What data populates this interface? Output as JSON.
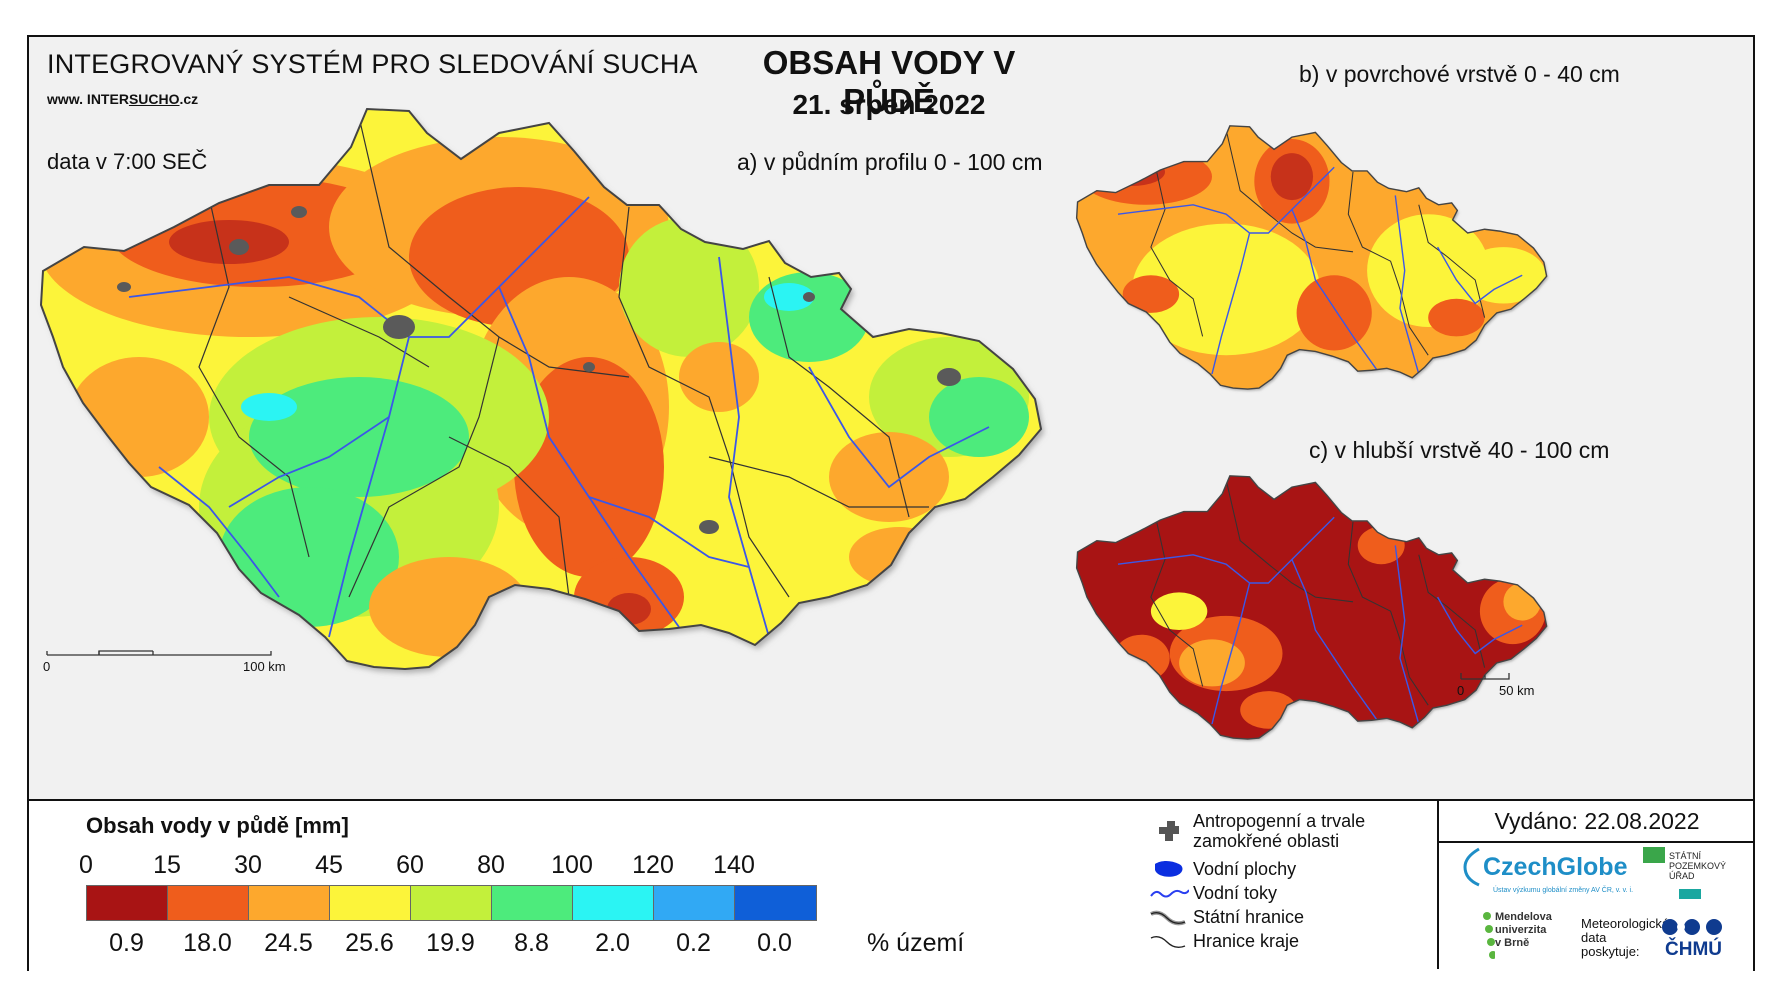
{
  "header": {
    "system_title": "INTEGROVANÝ SYSTÉM PRO SLEDOVÁNÍ SUCHA",
    "site_prefix": "www. INTER",
    "site_mid": "SUCHO",
    "site_suffix": ".cz",
    "time_note": "data v 7:00 SEČ",
    "main_title": "OBSAH VODY V PŮDĚ",
    "main_date": "21. srpen 2022"
  },
  "maps": {
    "a_title": "a) v půdním profilu 0 - 100 cm",
    "b_title": "b) v povrchové vrstvě 0 - 40 cm",
    "c_title": "c) v hlubší vrstvě 40 - 100 cm",
    "scale_main": {
      "start": "0",
      "end": "100 km"
    },
    "scale_small": {
      "start": "0",
      "end": "50 km"
    }
  },
  "legend": {
    "title": "Obsah vody v půdě  [mm]",
    "ticks": [
      "0",
      "15",
      "30",
      "45",
      "60",
      "80",
      "100",
      "120",
      "140"
    ],
    "colors": [
      "#a81414",
      "#ef5d1c",
      "#fda82d",
      "#fcf43a",
      "#c3f03b",
      "#4deb7c",
      "#2bf4f3",
      "#31a9f4",
      "#0f5fd8"
    ],
    "percent_values": [
      "0.9",
      "18.0",
      "24.5",
      "25.6",
      "19.9",
      "8.8",
      "2.0",
      "0.2",
      "0.0"
    ],
    "percent_unit": "% území",
    "symbols": [
      {
        "icon": "anthropogenic-area-icon",
        "label_line1": "Antropogenní a trvale",
        "label_line2": "zamokřené oblasti"
      },
      {
        "icon": "water-body-icon",
        "label_line1": "Vodní plochy"
      },
      {
        "icon": "river-icon",
        "label_line1": "Vodní toky"
      },
      {
        "icon": "state-border-icon",
        "label_line1": "Státní hranice"
      },
      {
        "icon": "region-border-icon",
        "label_line1": "Hranice kraje"
      }
    ]
  },
  "footer": {
    "issued": "Vydáno: 22.08.2022",
    "logo_czechglobe": "CzechGlobe",
    "logo_czechglobe_sub": "Ústav výzkumu globální změny AV ČR, v. v. i.",
    "logo_spu_lines": [
      "STÁTNÍ",
      "POZEMKOVÝ",
      "ÚŘAD"
    ],
    "logo_mendel_lines": [
      "Mendelova",
      "univerzita",
      "v Brně"
    ],
    "met_lines": [
      "Meteorologická",
      "data",
      "poskytuje:"
    ],
    "chmu": "ČHMÚ"
  }
}
